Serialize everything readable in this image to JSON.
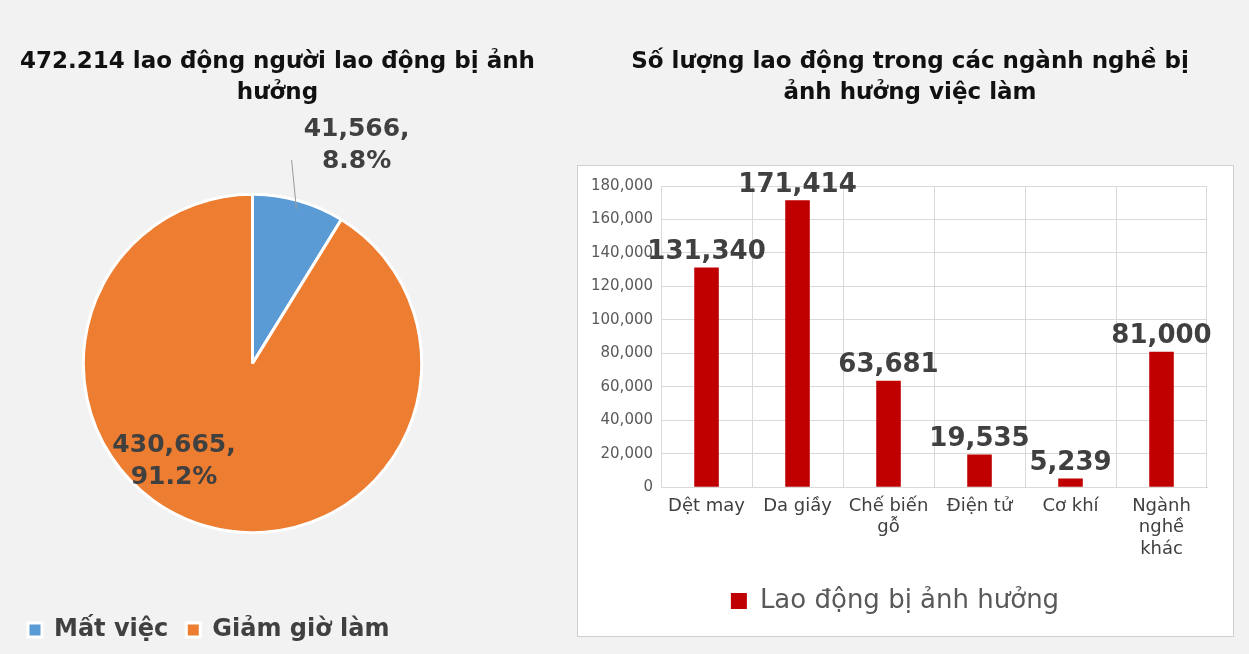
{
  "chart_data": [
    {
      "type": "pie",
      "title": "472.214 lao động người lao động bị ảnh hưởng",
      "categories": [
        "Mất việc",
        "Giảm giờ làm"
      ],
      "values": [
        41566,
        430665
      ],
      "colors": [
        "#5b9bd5",
        "#ed7d31"
      ],
      "value_labels": [
        "41,566, 8.8%",
        "430,665, 91.2%"
      ],
      "legend": "bottom left"
    },
    {
      "type": "bar",
      "title": "Số lượng lao động trong các ngành nghề bị ảnh hưởng việc làm",
      "categories": [
        "Dệt may",
        "Da giầy",
        "Chế biến gỗ",
        "Điện tử",
        "Cơ khí",
        "Ngành nghề khác"
      ],
      "series": [
        {
          "name": "Lao động bị ảnh hưởng",
          "color": "#c00000",
          "values": [
            131340,
            171414,
            63681,
            19535,
            5239,
            81000
          ],
          "value_labels": [
            "131,340",
            "171,414",
            "63,681",
            "19,535",
            "5,239",
            "81,000"
          ]
        }
      ],
      "ylim": [
        0,
        180000
      ],
      "yticks": [
        0,
        {
          "value": 20000,
          "label": "20,000"
        },
        {
          "value": 40000,
          "label": "40,000"
        },
        {
          "value": 60000,
          "label": "60,000"
        },
        {
          "value": 80000,
          "label": "80,000"
        },
        {
          "value": 100000,
          "label": "100,000"
        },
        {
          "value": 120000,
          "label": "120,000"
        },
        {
          "value": 140000,
          "label": "140,000"
        },
        {
          "value": 160000,
          "label": "160,000"
        },
        {
          "value": 180000,
          "label": "180,000"
        }
      ],
      "grid": true,
      "legend": "bottom"
    }
  ]
}
